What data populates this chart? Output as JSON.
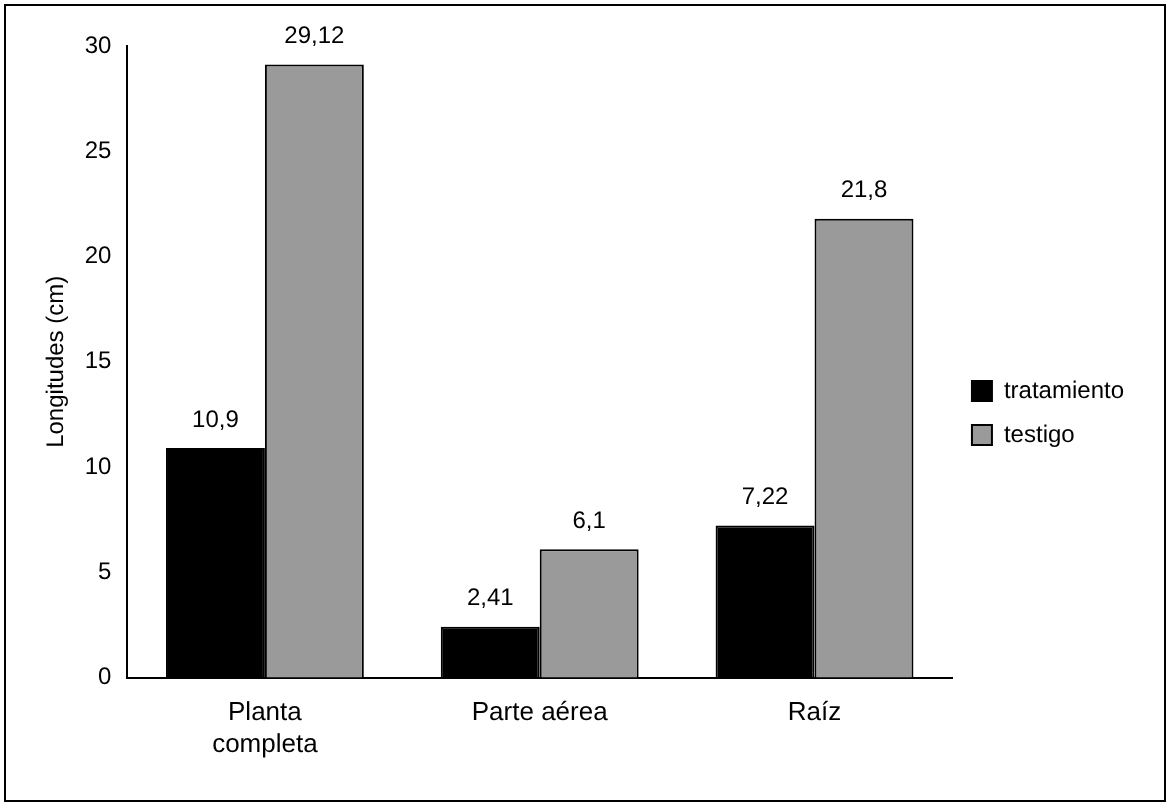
{
  "chart_data": {
    "type": "bar",
    "ylabel": "Longitudes (cm)",
    "categories": [
      "Planta completa",
      "Parte aérea",
      "Raíz"
    ],
    "series": [
      {
        "name": "tratamiento",
        "color": "#000000",
        "values": [
          10.9,
          2.41,
          7.22
        ],
        "value_labels": [
          "10,9",
          "2,41",
          "7,22"
        ]
      },
      {
        "name": "testigo",
        "color": "#9a9a9a",
        "values": [
          29.12,
          6.1,
          21.8
        ],
        "value_labels": [
          "29,12",
          "6,1",
          "21,8"
        ]
      }
    ],
    "ylim": [
      0,
      30
    ],
    "yticks": [
      0,
      5,
      10,
      15,
      20,
      25,
      30
    ],
    "grid": false,
    "legend": "right"
  }
}
